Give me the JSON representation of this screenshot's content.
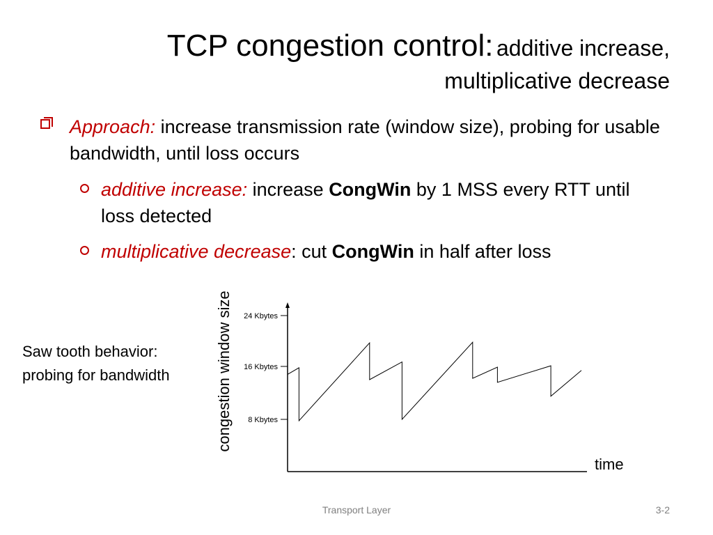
{
  "title": {
    "main": "TCP congestion control:",
    "sub_line1": "additive increase,",
    "sub_line2": "multiplicative decrease"
  },
  "bullets": {
    "approach_label": "Approach:",
    "approach_text": " increase transmission rate (window size), probing for usable bandwidth, until loss occurs",
    "additive_label": "additive increase:",
    "additive_text_a": " increase ",
    "additive_bold": "CongWin",
    "additive_text_b": " by 1 MSS every RTT until loss detected",
    "mult_label": "multiplicative decrease",
    "mult_text_a": ": cut ",
    "mult_bold": "CongWin",
    "mult_text_b": " in half after loss"
  },
  "side_note": "Saw tooth behavior: probing for bandwidth",
  "footer": {
    "center": "Transport Layer",
    "right": "3-2"
  },
  "colors": {
    "accent": "#c00000"
  },
  "chart_data": {
    "type": "line",
    "ylabel": "congestion window size",
    "xlabel": "time",
    "y_ticks": [
      {
        "value": 24,
        "label": "24 Kbytes"
      },
      {
        "value": 16,
        "label": "16 Kbytes"
      },
      {
        "value": 8,
        "label": "8 Kbytes"
      }
    ],
    "ylim": [
      0,
      26
    ],
    "series": [
      {
        "points": [
          [
            0,
            14.8
          ],
          [
            0.6,
            15.8
          ],
          [
            0.6,
            7.8
          ],
          [
            4.3,
            19.7
          ],
          [
            4.3,
            14.0
          ],
          [
            6.0,
            16.7
          ],
          [
            6.0,
            8.0
          ],
          [
            9.7,
            19.8
          ],
          [
            9.7,
            14.2
          ],
          [
            11.0,
            15.9
          ],
          [
            11.0,
            13.6
          ],
          [
            13.8,
            16.1
          ],
          [
            13.8,
            11.5
          ],
          [
            15.4,
            15.4
          ]
        ]
      }
    ],
    "grid": false,
    "legend": "none"
  }
}
